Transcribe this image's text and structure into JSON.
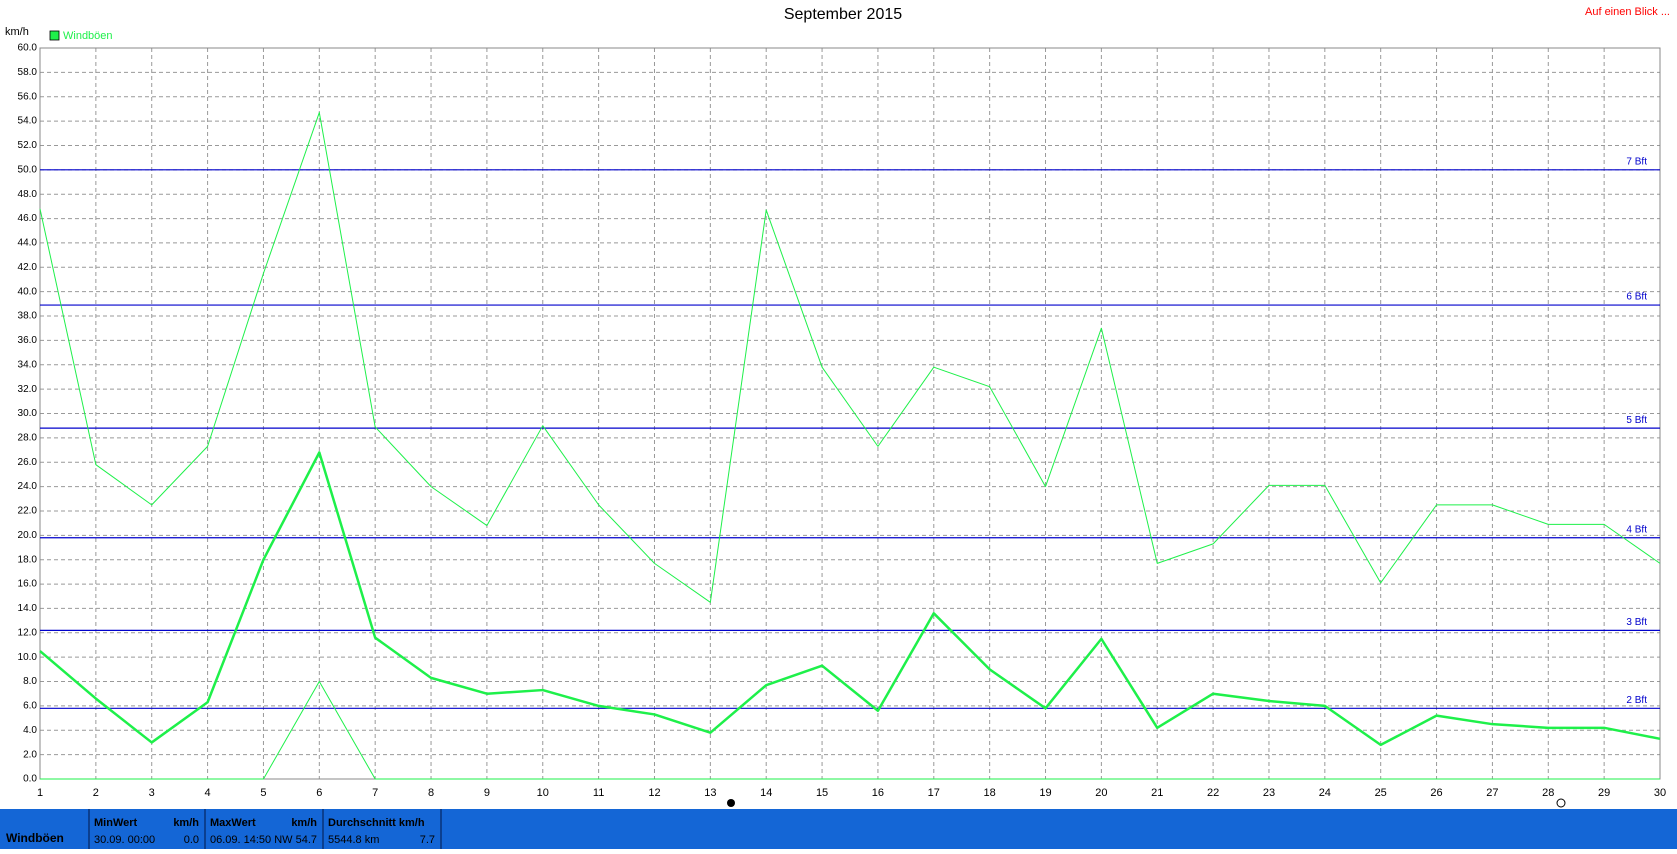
{
  "chart_data": {
    "type": "line",
    "title": "September 2015",
    "ylabel": "km/h",
    "link": "Auf einen Blick ...",
    "x": [
      1,
      2,
      3,
      4,
      5,
      6,
      7,
      8,
      9,
      10,
      11,
      12,
      13,
      14,
      15,
      16,
      17,
      18,
      19,
      20,
      21,
      22,
      23,
      24,
      25,
      26,
      27,
      28,
      29,
      30
    ],
    "xlim": [
      1,
      30
    ],
    "xticks": [
      1,
      2,
      3,
      4,
      5,
      6,
      7,
      8,
      9,
      10,
      11,
      12,
      13,
      14,
      15,
      16,
      17,
      18,
      19,
      20,
      21,
      22,
      23,
      24,
      25,
      26,
      27,
      28,
      29,
      30
    ],
    "ylim": [
      0,
      60
    ],
    "yticks": [
      {
        "value": 0,
        "label": "0.0"
      },
      {
        "value": 2,
        "label": "2.0"
      },
      {
        "value": 4,
        "label": "4.0"
      },
      {
        "value": 6,
        "label": "6.0"
      },
      {
        "value": 8,
        "label": "8.0"
      },
      {
        "value": 10,
        "label": "10.0"
      },
      {
        "value": 12,
        "label": "12.0"
      },
      {
        "value": 14,
        "label": "14.0"
      },
      {
        "value": 16,
        "label": "16.0"
      },
      {
        "value": 18,
        "label": "18.0"
      },
      {
        "value": 20,
        "label": "20.0"
      },
      {
        "value": 22,
        "label": "22.0"
      },
      {
        "value": 24,
        "label": "24.0"
      },
      {
        "value": 26,
        "label": "26.0"
      },
      {
        "value": 28,
        "label": "28.0"
      },
      {
        "value": 30,
        "label": "30.0"
      },
      {
        "value": 32,
        "label": "32.0"
      },
      {
        "value": 34,
        "label": "34.0"
      },
      {
        "value": 36,
        "label": "36.0"
      },
      {
        "value": 38,
        "label": "38.0"
      },
      {
        "value": 40,
        "label": "40.0"
      },
      {
        "value": 42,
        "label": "42.0"
      },
      {
        "value": 44,
        "label": "44.0"
      },
      {
        "value": 46,
        "label": "46.0"
      },
      {
        "value": 48,
        "label": "48.0"
      },
      {
        "value": 50,
        "label": "50.0"
      },
      {
        "value": 52,
        "label": "52.0"
      },
      {
        "value": 54,
        "label": "54.0"
      },
      {
        "value": 56,
        "label": "56.0"
      },
      {
        "value": 58,
        "label": "58.0"
      },
      {
        "value": 60,
        "label": "60.0"
      }
    ],
    "grid": true,
    "series": [
      {
        "name": "Windböen",
        "color": "#1ef04a",
        "line_width": 2.5,
        "values": [
          10.5,
          6.6,
          3.0,
          6.3,
          18.0,
          26.8,
          11.6,
          8.3,
          7.0,
          7.3,
          6.0,
          5.3,
          3.8,
          7.7,
          9.3,
          5.6,
          13.6,
          9.0,
          5.8,
          11.5,
          4.2,
          7.0,
          6.4,
          6.0,
          2.8,
          5.2,
          4.5,
          4.2,
          4.2,
          3.3
        ]
      },
      {
        "color": "#1ef04a",
        "line_width": 1,
        "values": [
          46.8,
          25.8,
          22.5,
          27.3,
          41.5,
          54.7,
          28.9,
          24.0,
          20.8,
          29.0,
          22.5,
          17.7,
          14.5,
          46.7,
          33.8,
          27.3,
          33.8,
          32.2,
          24.0,
          37.0,
          17.7,
          19.3,
          24.1,
          24.1,
          16.1,
          22.5,
          22.5,
          20.9,
          20.9,
          17.7
        ]
      },
      {
        "color": "#1ef04a",
        "line_width": 1,
        "values": [
          0,
          0,
          0,
          0,
          0,
          8.0,
          0,
          0,
          0,
          0,
          0,
          0,
          0,
          0,
          0,
          0,
          0,
          0,
          0,
          0,
          0,
          0,
          0,
          0,
          0,
          0,
          0,
          0,
          0,
          0
        ]
      }
    ],
    "reference_color": "#0000cc",
    "reference_lines": [
      {
        "value": 5.8,
        "label": "2 Bft"
      },
      {
        "value": 12.2,
        "label": "3 Bft"
      },
      {
        "value": 19.8,
        "label": "4 Bft"
      },
      {
        "value": 28.8,
        "label": "5 Bft"
      },
      {
        "value": 38.9,
        "label": "6 Bft"
      },
      {
        "value": 50.0,
        "label": "7 Bft"
      }
    ]
  },
  "summary": {
    "label": "Windböen",
    "panels": [
      {
        "title": "MinWert",
        "unit": "km/h",
        "time": "30.09.  00:00",
        "value": "0.0"
      },
      {
        "title": "MaxWert",
        "unit": "km/h",
        "time": "06.09.  14:50",
        "value": "NW 54.7"
      },
      {
        "title": "Durchschnitt km/h",
        "time": "5544.8 km",
        "value": "7.7"
      }
    ]
  }
}
